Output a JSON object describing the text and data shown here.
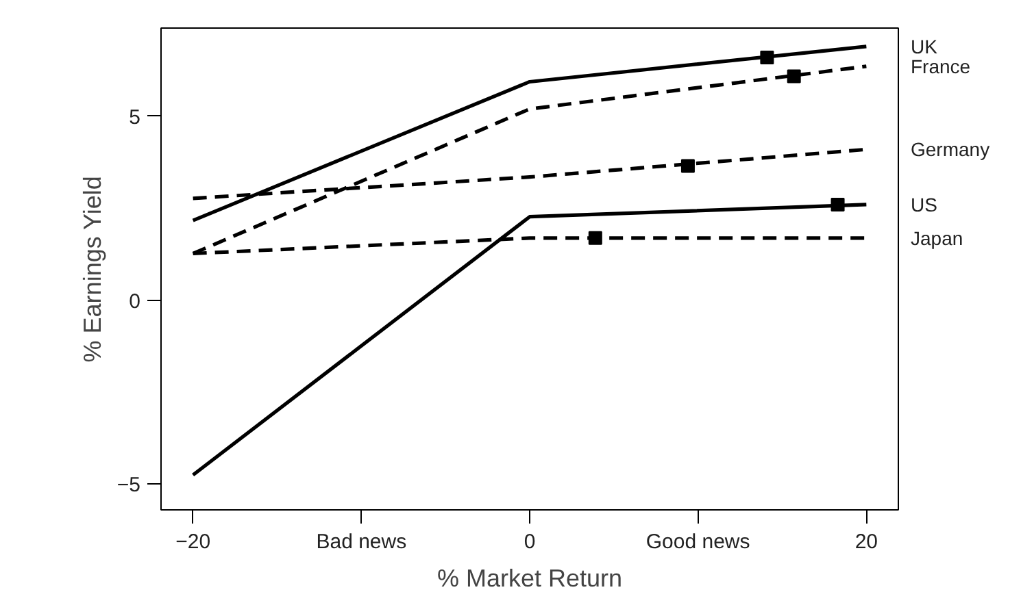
{
  "chart_data": {
    "type": "line",
    "xlabel": "% Market Return",
    "ylabel": "% Earnings Yield",
    "xlim": [
      -21.9,
      21.9
    ],
    "ylim": [
      -5.7,
      7.4
    ],
    "xticks": [
      -20,
      {
        "value": -10,
        "label": "Bad news"
      },
      0,
      {
        "value": 10,
        "label": "Good news"
      },
      20
    ],
    "yticks": [
      -5,
      0,
      5
    ],
    "grid": false,
    "x": [
      -20,
      0,
      20
    ],
    "series": [
      {
        "name": "UK",
        "color": "#000000",
        "line_style": "solid",
        "values": [
          2.17,
          5.94,
          6.9
        ]
      },
      {
        "name": "France",
        "color": "#000000",
        "line_style": "dashed",
        "values": [
          1.27,
          5.2,
          6.36
        ]
      },
      {
        "name": "Germany",
        "color": "#000000",
        "line_style": "dashed",
        "values": [
          2.77,
          3.35,
          4.1
        ]
      },
      {
        "name": "US",
        "color": "#000000",
        "line_style": "solid",
        "values": [
          -4.75,
          2.27,
          2.6
        ]
      },
      {
        "name": "Japan",
        "color": "#000000",
        "line_style": "dashed",
        "values": [
          1.27,
          1.69,
          1.69
        ]
      },
      {
        "type": "scatter",
        "marker": "square",
        "color": "#000000",
        "x": [
          14.1,
          15.7,
          9.4,
          18.3,
          3.9
        ],
        "values": [
          6.6,
          6.09,
          3.65,
          2.6,
          1.69
        ]
      }
    ]
  }
}
